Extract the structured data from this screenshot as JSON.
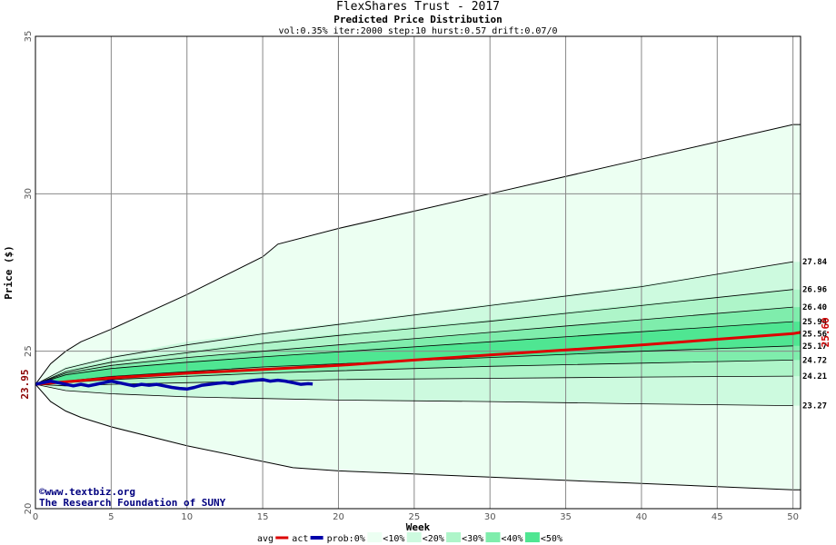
{
  "chart_data": {
    "type": "area",
    "title": "FlexShares Trust - 2017",
    "subtitle": "Predicted Price Distribution",
    "params": "vol:0.35% iter:2000 step:10 hurst:0.57 drift:0.07/0",
    "xlabel": "Week",
    "ylabel": "Price ($)",
    "xlim": [
      0,
      50.5
    ],
    "ylim": [
      20,
      35
    ],
    "x_ticks": [
      0,
      5,
      10,
      15,
      20,
      25,
      30,
      35,
      40,
      45,
      50
    ],
    "y_ticks": [
      20,
      25,
      30,
      35
    ],
    "grid": true,
    "start_price": 23.95,
    "start_label": "23.95",
    "end_avg_label": "25.60",
    "level_labels": [
      "27.84",
      "26.96",
      "26.40",
      "25.94",
      "25.56",
      "25.17",
      "24.72",
      "24.21",
      "23.27"
    ],
    "bands": [
      {
        "name": "<10%",
        "color": "#ecfff2",
        "upper": [
          [
            0,
            23.95
          ],
          [
            1,
            24.6
          ],
          [
            2,
            25.0
          ],
          [
            3,
            25.3
          ],
          [
            5,
            25.7
          ],
          [
            10,
            26.8
          ],
          [
            15,
            28.0
          ],
          [
            16,
            28.4
          ],
          [
            20,
            28.9
          ],
          [
            30,
            30.0
          ],
          [
            40,
            31.1
          ],
          [
            50,
            32.2
          ],
          [
            50.5,
            32.2
          ]
        ],
        "lower": [
          [
            0,
            23.95
          ],
          [
            1,
            23.4
          ],
          [
            2,
            23.1
          ],
          [
            3,
            22.9
          ],
          [
            5,
            22.6
          ],
          [
            10,
            22.0
          ],
          [
            15,
            21.5
          ],
          [
            17,
            21.3
          ],
          [
            20,
            21.2
          ],
          [
            30,
            21.0
          ],
          [
            40,
            20.8
          ],
          [
            50,
            20.6
          ],
          [
            50.5,
            20.6
          ]
        ]
      },
      {
        "name": "<20%",
        "color": "#cdfadf",
        "upper": [
          [
            0,
            23.95
          ],
          [
            2,
            24.5
          ],
          [
            5,
            24.85
          ],
          [
            10,
            25.3
          ],
          [
            15,
            25.6
          ],
          [
            20,
            25.9
          ],
          [
            30,
            26.5
          ],
          [
            40,
            27.1
          ],
          [
            50,
            27.84
          ],
          [
            50.5,
            27.84
          ]
        ],
        "lower": [
          [
            0,
            23.95
          ],
          [
            2,
            23.75
          ],
          [
            5,
            23.65
          ],
          [
            10,
            23.55
          ],
          [
            15,
            23.5
          ],
          [
            20,
            23.45
          ],
          [
            30,
            23.4
          ],
          [
            40,
            23.33
          ],
          [
            50,
            23.27
          ],
          [
            50.5,
            23.27
          ]
        ]
      },
      {
        "name": "<30%",
        "color": "#aef5c9",
        "upper": [
          [
            0,
            23.95
          ],
          [
            2,
            24.4
          ],
          [
            5,
            24.7
          ],
          [
            10,
            25.0
          ],
          [
            15,
            25.3
          ],
          [
            20,
            25.55
          ],
          [
            30,
            26.0
          ],
          [
            40,
            26.5
          ],
          [
            50,
            26.96
          ],
          [
            50.5,
            26.96
          ]
        ],
        "lower": [
          [
            0,
            23.95
          ],
          [
            2,
            23.9
          ],
          [
            5,
            23.95
          ],
          [
            10,
            24.0
          ],
          [
            15,
            24.05
          ],
          [
            20,
            24.1
          ],
          [
            30,
            24.14
          ],
          [
            40,
            24.18
          ],
          [
            50,
            24.21
          ],
          [
            50.5,
            24.21
          ]
        ]
      },
      {
        "name": "<40%",
        "color": "#7fedac",
        "upper": [
          [
            0,
            23.95
          ],
          [
            2,
            24.3
          ],
          [
            5,
            24.55
          ],
          [
            10,
            24.8
          ],
          [
            15,
            25.0
          ],
          [
            20,
            25.2
          ],
          [
            30,
            25.6
          ],
          [
            40,
            26.0
          ],
          [
            50,
            26.4
          ],
          [
            50.5,
            26.4
          ]
        ],
        "lower": [
          [
            0,
            23.95
          ],
          [
            2,
            24.0
          ],
          [
            5,
            24.1
          ],
          [
            10,
            24.2
          ],
          [
            15,
            24.3
          ],
          [
            20,
            24.38
          ],
          [
            30,
            24.52
          ],
          [
            40,
            24.62
          ],
          [
            50,
            24.72
          ],
          [
            50.5,
            24.72
          ]
        ]
      },
      {
        "name": "<50%",
        "color": "#4fe692",
        "upper": [
          [
            0,
            23.95
          ],
          [
            2,
            24.25
          ],
          [
            5,
            24.45
          ],
          [
            10,
            24.65
          ],
          [
            15,
            24.82
          ],
          [
            20,
            24.98
          ],
          [
            30,
            25.3
          ],
          [
            40,
            25.62
          ],
          [
            50,
            25.94
          ],
          [
            50.5,
            25.94
          ]
        ],
        "lower": [
          [
            0,
            23.95
          ],
          [
            2,
            24.05
          ],
          [
            5,
            24.2
          ],
          [
            10,
            24.35
          ],
          [
            15,
            24.5
          ],
          [
            20,
            24.6
          ],
          [
            30,
            24.8
          ],
          [
            40,
            25.0
          ],
          [
            50,
            25.17
          ],
          [
            50.5,
            25.17
          ]
        ]
      }
    ],
    "series": [
      {
        "name": "avg",
        "color": "#dd0000",
        "points": [
          [
            0,
            23.95
          ],
          [
            5,
            24.15
          ],
          [
            10,
            24.3
          ],
          [
            15,
            24.42
          ],
          [
            20,
            24.55
          ],
          [
            25,
            24.72
          ],
          [
            30,
            24.88
          ],
          [
            35,
            25.04
          ],
          [
            40,
            25.2
          ],
          [
            45,
            25.38
          ],
          [
            50,
            25.56
          ],
          [
            50.5,
            25.6
          ]
        ]
      },
      {
        "name": "act",
        "color": "#0000aa",
        "points": [
          [
            0,
            23.95
          ],
          [
            0.5,
            24.0
          ],
          [
            1,
            24.05
          ],
          [
            1.5,
            24.0
          ],
          [
            2,
            23.95
          ],
          [
            2.5,
            23.9
          ],
          [
            3,
            23.95
          ],
          [
            3.5,
            23.9
          ],
          [
            4,
            23.95
          ],
          [
            4.5,
            24.0
          ],
          [
            5,
            24.05
          ],
          [
            5.5,
            24.0
          ],
          [
            6,
            23.95
          ],
          [
            6.5,
            23.9
          ],
          [
            7,
            23.95
          ],
          [
            7.5,
            23.92
          ],
          [
            8,
            23.95
          ],
          [
            8.5,
            23.9
          ],
          [
            9,
            23.85
          ],
          [
            9.5,
            23.82
          ],
          [
            10,
            23.8
          ],
          [
            10.5,
            23.85
          ],
          [
            11,
            23.92
          ],
          [
            11.5,
            23.95
          ],
          [
            12,
            23.98
          ],
          [
            12.5,
            24.0
          ],
          [
            13,
            23.97
          ],
          [
            13.5,
            24.02
          ],
          [
            14,
            24.05
          ],
          [
            14.5,
            24.08
          ],
          [
            15,
            24.1
          ],
          [
            15.5,
            24.05
          ],
          [
            16,
            24.08
          ],
          [
            16.5,
            24.05
          ],
          [
            17,
            24.0
          ],
          [
            17.5,
            23.95
          ],
          [
            18,
            23.97
          ],
          [
            18.3,
            23.96
          ]
        ]
      }
    ],
    "level_lines": [
      [
        [
          0,
          23.95
        ],
        [
          2,
          24.45
        ],
        [
          5,
          24.8
        ],
        [
          10,
          25.2
        ],
        [
          15,
          25.55
        ],
        [
          20,
          25.85
        ],
        [
          30,
          26.45
        ],
        [
          40,
          27.05
        ],
        [
          50,
          27.84
        ]
      ],
      [
        [
          0,
          23.95
        ],
        [
          2,
          24.35
        ],
        [
          5,
          24.65
        ],
        [
          10,
          24.95
        ],
        [
          15,
          25.25
        ],
        [
          20,
          25.5
        ],
        [
          30,
          25.95
        ],
        [
          40,
          26.45
        ],
        [
          50,
          26.96
        ]
      ],
      [
        [
          0,
          23.95
        ],
        [
          2,
          24.3
        ],
        [
          5,
          24.55
        ],
        [
          10,
          24.8
        ],
        [
          15,
          25.0
        ],
        [
          20,
          25.2
        ],
        [
          30,
          25.6
        ],
        [
          40,
          26.0
        ],
        [
          50,
          26.4
        ]
      ],
      [
        [
          0,
          23.95
        ],
        [
          2,
          24.25
        ],
        [
          5,
          24.45
        ],
        [
          10,
          24.65
        ],
        [
          15,
          24.82
        ],
        [
          20,
          24.98
        ],
        [
          30,
          25.3
        ],
        [
          40,
          25.62
        ],
        [
          50,
          25.94
        ]
      ],
      [
        [
          0,
          23.95
        ],
        [
          2,
          24.05
        ],
        [
          5,
          24.2
        ],
        [
          10,
          24.35
        ],
        [
          15,
          24.5
        ],
        [
          20,
          24.6
        ],
        [
          30,
          24.8
        ],
        [
          40,
          25.0
        ],
        [
          50,
          25.17
        ]
      ],
      [
        [
          0,
          23.95
        ],
        [
          2,
          24.0
        ],
        [
          5,
          24.1
        ],
        [
          10,
          24.2
        ],
        [
          15,
          24.3
        ],
        [
          20,
          24.38
        ],
        [
          30,
          24.52
        ],
        [
          40,
          24.62
        ],
        [
          50,
          24.72
        ]
      ],
      [
        [
          0,
          23.95
        ],
        [
          2,
          23.9
        ],
        [
          5,
          23.95
        ],
        [
          10,
          24.0
        ],
        [
          15,
          24.05
        ],
        [
          20,
          24.1
        ],
        [
          30,
          24.14
        ],
        [
          40,
          24.18
        ],
        [
          50,
          24.21
        ]
      ],
      [
        [
          0,
          23.95
        ],
        [
          2,
          23.75
        ],
        [
          5,
          23.65
        ],
        [
          10,
          23.55
        ],
        [
          15,
          23.5
        ],
        [
          20,
          23.45
        ],
        [
          30,
          23.4
        ],
        [
          40,
          23.33
        ],
        [
          50,
          23.27
        ]
      ]
    ],
    "legend": {
      "avg": "avg",
      "act": "act",
      "prob": "prob:0%",
      "items": [
        "<10%",
        "<20%",
        "<30%",
        "<40%",
        "<50%"
      ]
    },
    "credit_line1": "www.textbiz.org",
    "credit_line2": "The Research Foundation of SUNY",
    "copyright_symbol": "©"
  },
  "colors": {
    "avg": "#dd0000",
    "act": "#0000aa",
    "grid": "#888888",
    "envelope": "#000000"
  }
}
